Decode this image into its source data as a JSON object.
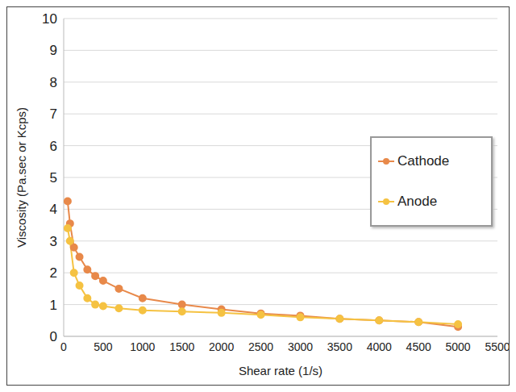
{
  "chart_data": {
    "type": "line",
    "x_label": "Shear rate (1/s)",
    "y_label": "Viscosity (Pa.sec or Kcps)",
    "x": [
      50,
      80,
      130,
      200,
      300,
      400,
      500,
      700,
      1000,
      1500,
      2000,
      2500,
      3000,
      3500,
      4000,
      4500,
      5000
    ],
    "series": [
      {
        "name": "Cathode",
        "color": "#e8894a",
        "marker": "circle",
        "values": [
          4.25,
          3.55,
          2.8,
          2.5,
          2.1,
          1.9,
          1.75,
          1.5,
          1.2,
          1.0,
          0.85,
          0.72,
          0.65,
          0.55,
          0.5,
          0.45,
          0.3
        ]
      },
      {
        "name": "Anode",
        "color": "#f5c242",
        "marker": "circle",
        "values": [
          3.4,
          3.0,
          2.0,
          1.6,
          1.2,
          1.0,
          0.95,
          0.88,
          0.82,
          0.78,
          0.74,
          0.68,
          0.6,
          0.55,
          0.5,
          0.45,
          0.38
        ]
      }
    ],
    "xlim": [
      0,
      5500
    ],
    "xticks": [
      0,
      500,
      1000,
      1500,
      2000,
      2500,
      3000,
      3500,
      4000,
      4500,
      5000,
      5500
    ],
    "ylim": [
      0,
      10
    ],
    "yticks": [
      0,
      1,
      2,
      3,
      4,
      5,
      6,
      7,
      8,
      9,
      10
    ],
    "grid": true,
    "legend": "right"
  }
}
